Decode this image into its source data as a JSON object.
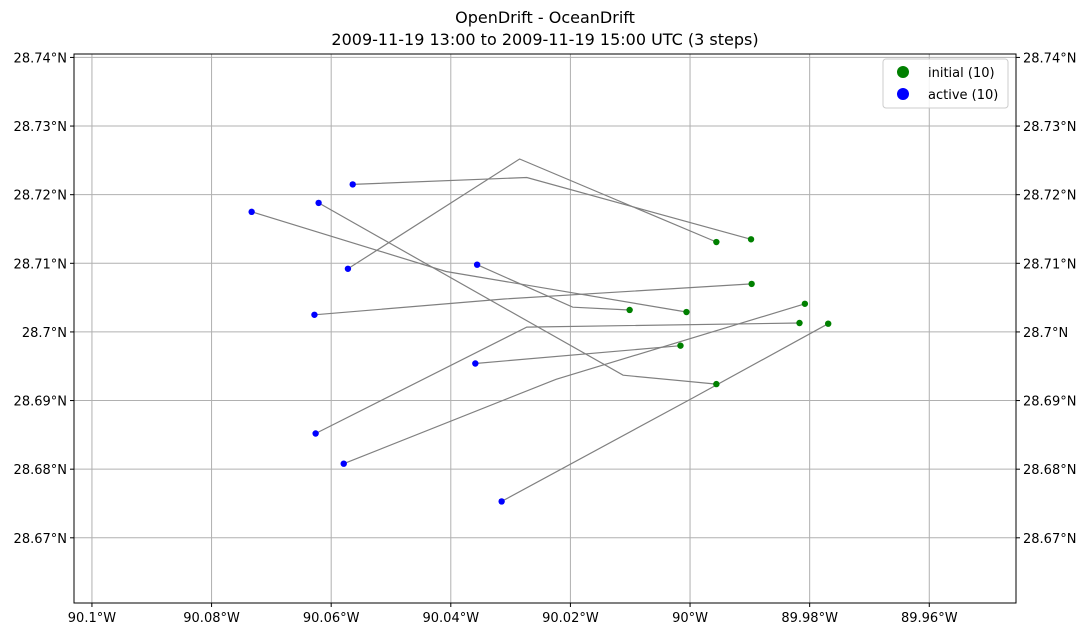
{
  "chart_data": {
    "type": "scatter",
    "title": "OpenDrift - OceanDrift",
    "subtitle": "2009-11-19 13:00 to 2009-11-19 15:00 UTC (3 steps)",
    "xlabel": "",
    "ylabel": "",
    "xlim": [
      -90.103,
      -89.9455
    ],
    "ylim": [
      28.6605,
      28.7405
    ],
    "grid": true,
    "legend_position": "top-right",
    "x_ticks": [
      {
        "value": -90.1,
        "label": "90.1°W"
      },
      {
        "value": -90.08,
        "label": "90.08°W"
      },
      {
        "value": -90.06,
        "label": "90.06°W"
      },
      {
        "value": -90.04,
        "label": "90.04°W"
      },
      {
        "value": -90.02,
        "label": "90.02°W"
      },
      {
        "value": -90.0,
        "label": "90°W"
      },
      {
        "value": -89.98,
        "label": "89.98°W"
      },
      {
        "value": -89.96,
        "label": "89.96°W"
      }
    ],
    "y_ticks": [
      {
        "value": 28.67,
        "label": "28.67°N"
      },
      {
        "value": 28.68,
        "label": "28.68°N"
      },
      {
        "value": 28.69,
        "label": "28.69°N"
      },
      {
        "value": 28.7,
        "label": "28.7°N"
      },
      {
        "value": 28.71,
        "label": "28.71°N"
      },
      {
        "value": 28.72,
        "label": "28.72°N"
      },
      {
        "value": 28.73,
        "label": "28.73°N"
      },
      {
        "value": 28.74,
        "label": "28.74°N"
      }
    ],
    "legend": [
      {
        "label": "initial (10)",
        "color": "#008000"
      },
      {
        "label": "active (10)",
        "color": "#0000ff"
      }
    ],
    "colors": {
      "initial": "#008000",
      "active": "#0000ff",
      "track": "#808080",
      "grid": "#b0b0b0"
    },
    "trajectories": [
      {
        "path": [
          [
            -89.9898,
            28.7135
          ],
          [
            -90.0273,
            28.7225
          ],
          [
            -90.0564,
            28.7215
          ]
        ]
      },
      {
        "path": [
          [
            -89.9956,
            28.7131
          ],
          [
            -90.0285,
            28.7252
          ],
          [
            -90.0572,
            28.7092
          ]
        ]
      },
      {
        "path": [
          [
            -90.0006,
            28.7029
          ],
          [
            -90.0408,
            28.7088
          ],
          [
            -90.0733,
            28.7175
          ]
        ]
      },
      {
        "path": [
          [
            -90.0101,
            28.7032
          ],
          [
            -90.0196,
            28.7036
          ],
          [
            -90.0356,
            28.7098
          ]
        ]
      },
      {
        "path": [
          [
            -89.9956,
            28.6924
          ],
          [
            -90.0112,
            28.6937
          ],
          [
            -90.0621,
            28.7188
          ]
        ]
      },
      {
        "path": [
          [
            -89.9897,
            28.707
          ],
          [
            -90.0311,
            28.7048
          ],
          [
            -90.0628,
            28.7025
          ]
        ]
      },
      {
        "path": [
          [
            -89.9817,
            28.7013
          ],
          [
            -90.0273,
            28.7007
          ],
          [
            -90.0626,
            28.6852
          ]
        ]
      },
      {
        "path": [
          [
            -89.9808,
            28.7041
          ],
          [
            -90.0224,
            28.6931
          ],
          [
            -90.0579,
            28.6808
          ]
        ]
      },
      {
        "path": [
          [
            -90.0016,
            28.698
          ],
          [
            -90.0359,
            28.6954
          ]
        ]
      },
      {
        "path": [
          [
            -89.9769,
            28.7012
          ],
          [
            -89.9997,
            28.6903
          ],
          [
            -90.0315,
            28.6753
          ]
        ]
      }
    ]
  }
}
